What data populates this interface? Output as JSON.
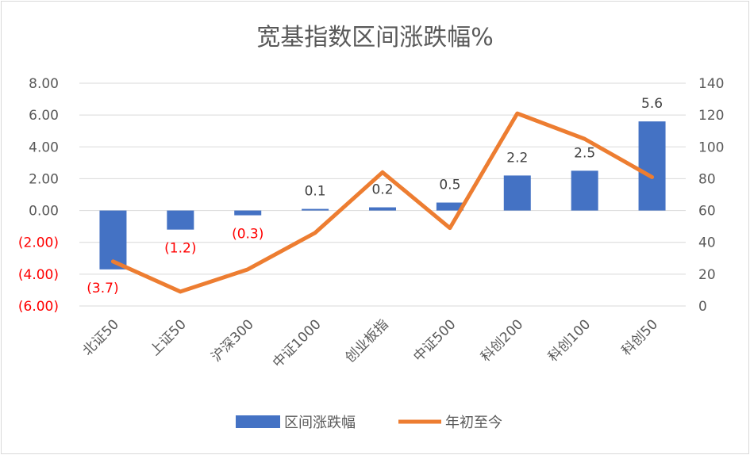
{
  "chart_data": {
    "type": "bar",
    "title": "宽基指数区间涨跌幅%",
    "categories": [
      "北证50",
      "上证50",
      "沪深300",
      "中证1000",
      "创业板指",
      "中证500",
      "科创200",
      "科创100",
      "科创50"
    ],
    "series": [
      {
        "name": "区间涨跌幅",
        "type": "bar",
        "axis": "left",
        "color": "#4472c4",
        "values": [
          -3.7,
          -1.2,
          -0.3,
          0.1,
          0.2,
          0.5,
          2.2,
          2.5,
          5.6
        ],
        "labels": [
          "(3.7)",
          "(1.2)",
          "(0.3)",
          "0.1",
          "0.2",
          "0.5",
          "2.2",
          "2.5",
          "5.6"
        ]
      },
      {
        "name": "年初至今",
        "type": "line",
        "axis": "right",
        "color": "#ed7d31",
        "values": [
          28,
          9,
          23,
          46,
          84,
          49,
          121,
          105,
          81
        ]
      }
    ],
    "y_left": {
      "lim": [
        -6,
        8
      ],
      "ticks": [
        8,
        6,
        4,
        2,
        0,
        -2,
        -4,
        -6
      ],
      "tick_labels": [
        "8.00",
        "6.00",
        "4.00",
        "2.00",
        "0.00",
        "(2.00)",
        "(4.00)",
        "(6.00)"
      ],
      "negative_color": "#ff0000"
    },
    "y_right": {
      "lim": [
        0,
        140
      ],
      "ticks": [
        140,
        120,
        100,
        80,
        60,
        40,
        20,
        0
      ],
      "tick_labels": [
        "140",
        "120",
        "100",
        "80",
        "60",
        "40",
        "20",
        "0"
      ]
    },
    "grid": true,
    "legend_position": "bottom"
  }
}
